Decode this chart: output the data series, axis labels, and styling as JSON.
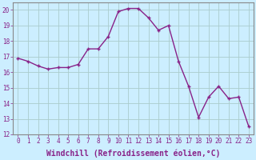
{
  "x": [
    0,
    1,
    2,
    3,
    4,
    5,
    6,
    7,
    8,
    9,
    10,
    11,
    12,
    13,
    14,
    15,
    16,
    17,
    18,
    19,
    20,
    21,
    22,
    23
  ],
  "y": [
    16.9,
    16.7,
    16.4,
    16.2,
    16.3,
    16.3,
    16.5,
    17.5,
    17.5,
    18.3,
    19.9,
    20.1,
    20.1,
    19.5,
    18.7,
    19.0,
    16.7,
    15.1,
    13.1,
    14.4,
    15.1,
    14.3,
    14.4,
    12.5
  ],
  "line_color": "#882288",
  "marker": "+",
  "bg_color": "#cceeff",
  "grid_color": "#aacccc",
  "xlabel": "Windchill (Refroidissement éolien,°C)",
  "xlim_min": -0.5,
  "xlim_max": 23.5,
  "ylim_min": 12,
  "ylim_max": 20.5,
  "yticks": [
    12,
    13,
    14,
    15,
    16,
    17,
    18,
    19,
    20
  ],
  "xticks": [
    0,
    1,
    2,
    3,
    4,
    5,
    6,
    7,
    8,
    9,
    10,
    11,
    12,
    13,
    14,
    15,
    16,
    17,
    18,
    19,
    20,
    21,
    22,
    23
  ],
  "tick_fontsize": 5.5,
  "xlabel_fontsize": 7,
  "line_width": 1.0,
  "marker_size": 3.5,
  "marker_edge_width": 1.0
}
